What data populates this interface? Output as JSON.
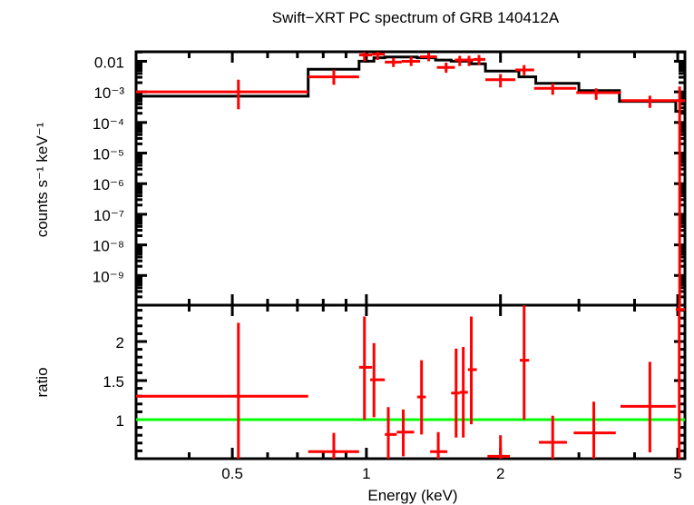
{
  "chart_data": [
    {
      "panel": "spectrum",
      "type": "scatter",
      "title": "Swift−XRT PC spectrum of GRB 140412A",
      "xlabel": "",
      "ylabel": "counts s⁻¹ keV⁻¹",
      "xscale": "log",
      "yscale": "log",
      "xlim": [
        0.304,
        5.19
      ],
      "ylim_log10": [
        -9.97,
        -1.69
      ],
      "ytick_labels": [
        {
          "value": 0.01,
          "label": "0.01"
        },
        {
          "value": 0.001,
          "label": "10⁻³"
        },
        {
          "value": 0.0001,
          "label": "10⁻⁴"
        },
        {
          "value": 1e-05,
          "label": "10⁻⁵"
        },
        {
          "value": 1e-06,
          "label": "10⁻⁶"
        },
        {
          "value": 1e-07,
          "label": "10⁻⁷"
        },
        {
          "value": 1e-08,
          "label": "10⁻⁸"
        },
        {
          "value": 1e-09,
          "label": "10⁻⁹"
        }
      ],
      "series": [
        {
          "name": "data",
          "color": "#ff0000",
          "points": [
            {
              "e": 0.516,
              "elo": 0.304,
              "ehi": 0.74,
              "v": 0.001,
              "vlo": 0.00027,
              "vhi": 0.0025
            },
            {
              "e": 0.845,
              "elo": 0.74,
              "ehi": 0.963,
              "v": 0.0031,
              "vlo": 0.0017,
              "vhi": 0.0053
            },
            {
              "e": 0.99,
              "elo": 0.963,
              "ehi": 1.03,
              "v": 0.016,
              "vlo": 0.01,
              "vhi": 0.02
            },
            {
              "e": 1.06,
              "elo": 1.03,
              "ehi": 1.1,
              "v": 0.017,
              "vlo": 0.011,
              "vhi": 0.02
            },
            {
              "e": 1.15,
              "elo": 1.1,
              "ehi": 1.2,
              "v": 0.0094,
              "vlo": 0.0065,
              "vhi": 0.013
            },
            {
              "e": 1.26,
              "elo": 1.2,
              "ehi": 1.32,
              "v": 0.01,
              "vlo": 0.007,
              "vhi": 0.014
            },
            {
              "e": 1.38,
              "elo": 1.32,
              "ehi": 1.44,
              "v": 0.014,
              "vlo": 0.01,
              "vhi": 0.019
            },
            {
              "e": 1.51,
              "elo": 1.44,
              "ehi": 1.58,
              "v": 0.0063,
              "vlo": 0.0042,
              "vhi": 0.009
            },
            {
              "e": 1.62,
              "elo": 1.58,
              "ehi": 1.66,
              "v": 0.011,
              "vlo": 0.007,
              "vhi": 0.015
            },
            {
              "e": 1.7,
              "elo": 1.66,
              "ehi": 1.74,
              "v": 0.011,
              "vlo": 0.007,
              "vhi": 0.015
            },
            {
              "e": 1.79,
              "elo": 1.74,
              "ehi": 1.85,
              "v": 0.0115,
              "vlo": 0.0075,
              "vhi": 0.016
            },
            {
              "e": 2.0,
              "elo": 1.85,
              "ehi": 2.16,
              "v": 0.0025,
              "vlo": 0.0014,
              "vhi": 0.0038
            },
            {
              "e": 2.26,
              "elo": 2.16,
              "ehi": 2.38,
              "v": 0.0052,
              "vlo": 0.0035,
              "vhi": 0.0075
            },
            {
              "e": 2.62,
              "elo": 2.38,
              "ehi": 2.96,
              "v": 0.0013,
              "vlo": 0.0008,
              "vhi": 0.0019
            },
            {
              "e": 3.28,
              "elo": 2.96,
              "ehi": 3.73,
              "v": 0.00094,
              "vlo": 0.00055,
              "vhi": 0.0013
            },
            {
              "e": 4.33,
              "elo": 3.73,
              "ehi": 4.95,
              "v": 0.00052,
              "vlo": 0.0003,
              "vhi": 0.00075
            },
            {
              "e": 5.05,
              "elo": 4.95,
              "ehi": 5.19,
              "v": 0.00052,
              "vlo": 1e-10,
              "vhi": 0.0015
            }
          ]
        },
        {
          "name": "model",
          "color": "#000000",
          "steps": [
            {
              "elo": 0.304,
              "ehi": 0.74,
              "v": 0.00072
            },
            {
              "elo": 0.74,
              "ehi": 0.963,
              "v": 0.0055
            },
            {
              "elo": 0.963,
              "ehi": 1.04,
              "v": 0.01
            },
            {
              "elo": 1.04,
              "ehi": 1.1,
              "v": 0.013
            },
            {
              "elo": 1.1,
              "ehi": 1.3,
              "v": 0.0138
            },
            {
              "elo": 1.3,
              "ehi": 1.43,
              "v": 0.013
            },
            {
              "elo": 1.43,
              "ehi": 1.55,
              "v": 0.011
            },
            {
              "elo": 1.55,
              "ehi": 1.72,
              "v": 0.01
            },
            {
              "elo": 1.72,
              "ehi": 1.85,
              "v": 0.0082
            },
            {
              "elo": 1.85,
              "ehi": 2.2,
              "v": 0.0048
            },
            {
              "elo": 2.2,
              "ehi": 2.4,
              "v": 0.0031
            },
            {
              "elo": 2.4,
              "ehi": 3.0,
              "v": 0.0019
            },
            {
              "elo": 3.0,
              "ehi": 3.7,
              "v": 0.0011
            },
            {
              "elo": 3.7,
              "ehi": 4.95,
              "v": 0.00049
            },
            {
              "elo": 4.95,
              "ehi": 5.19,
              "v": 0.00023
            }
          ]
        }
      ]
    },
    {
      "panel": "ratio",
      "type": "scatter",
      "xlabel": "Energy (keV)",
      "ylabel": "ratio",
      "xscale": "log",
      "yscale": "linear",
      "xlim": [
        0.304,
        5.19
      ],
      "ylim": [
        0.5,
        2.465
      ],
      "xtick_labels": [
        {
          "value": 0.5,
          "label": "0.5"
        },
        {
          "value": 1,
          "label": "1"
        },
        {
          "value": 2,
          "label": "2"
        },
        {
          "value": 5,
          "label": "5"
        }
      ],
      "ytick_labels": [
        {
          "value": 1,
          "label": "1"
        },
        {
          "value": 1.5,
          "label": "1.5"
        },
        {
          "value": 2,
          "label": "2"
        }
      ],
      "reference_line": {
        "value": 1,
        "color": "#00ff00"
      },
      "series": [
        {
          "name": "ratio",
          "color": "#ff0000",
          "points": [
            {
              "e": 0.516,
              "elo": 0.304,
              "ehi": 0.74,
              "r": 1.3,
              "rlo": 0.5,
              "rhi": 2.24
            },
            {
              "e": 0.845,
              "elo": 0.74,
              "ehi": 0.963,
              "r": 0.59,
              "rlo": 0.5,
              "rhi": 0.83
            },
            {
              "e": 0.99,
              "elo": 0.963,
              "ehi": 1.03,
              "r": 1.67,
              "rlo": 1.0,
              "rhi": 2.32
            },
            {
              "e": 1.04,
              "elo": 1.02,
              "ehi": 1.1,
              "r": 1.51,
              "rlo": 1.03,
              "rhi": 1.98
            },
            {
              "e": 1.12,
              "elo": 1.1,
              "ehi": 1.17,
              "r": 0.81,
              "rlo": 0.5,
              "rhi": 1.16
            },
            {
              "e": 1.21,
              "elo": 1.17,
              "ehi": 1.28,
              "r": 0.84,
              "rlo": 0.53,
              "rhi": 1.13
            },
            {
              "e": 1.33,
              "elo": 1.3,
              "ehi": 1.36,
              "r": 1.29,
              "rlo": 0.81,
              "rhi": 1.76
            },
            {
              "e": 1.45,
              "elo": 1.39,
              "ehi": 1.52,
              "r": 0.59,
              "rlo": 0.5,
              "rhi": 0.84
            },
            {
              "e": 1.59,
              "elo": 1.55,
              "ehi": 1.62,
              "r": 1.34,
              "rlo": 0.77,
              "rhi": 1.91
            },
            {
              "e": 1.65,
              "elo": 1.62,
              "ehi": 1.69,
              "r": 1.35,
              "rlo": 0.77,
              "rhi": 1.93
            },
            {
              "e": 1.72,
              "elo": 1.69,
              "ehi": 1.77,
              "r": 1.64,
              "rlo": 0.94,
              "rhi": 2.32
            },
            {
              "e": 2.0,
              "elo": 1.87,
              "ehi": 2.1,
              "r": 0.53,
              "rlo": 0.5,
              "rhi": 0.8
            },
            {
              "e": 2.26,
              "elo": 2.21,
              "ehi": 2.32,
              "r": 1.76,
              "rlo": 1.0,
              "rhi": 2.465
            },
            {
              "e": 2.62,
              "elo": 2.44,
              "ehi": 2.82,
              "r": 0.71,
              "rlo": 0.5,
              "rhi": 1.05
            },
            {
              "e": 3.24,
              "elo": 2.92,
              "ehi": 3.63,
              "r": 0.83,
              "rlo": 0.5,
              "rhi": 1.23
            },
            {
              "e": 4.33,
              "elo": 3.72,
              "ehi": 4.95,
              "r": 1.17,
              "rlo": 0.58,
              "rhi": 1.74
            },
            {
              "e": 5.04,
              "elo": 4.95,
              "ehi": 5.19,
              "r": 2.41,
              "rlo": 0.5,
              "rhi": 2.465
            }
          ]
        }
      ]
    }
  ]
}
